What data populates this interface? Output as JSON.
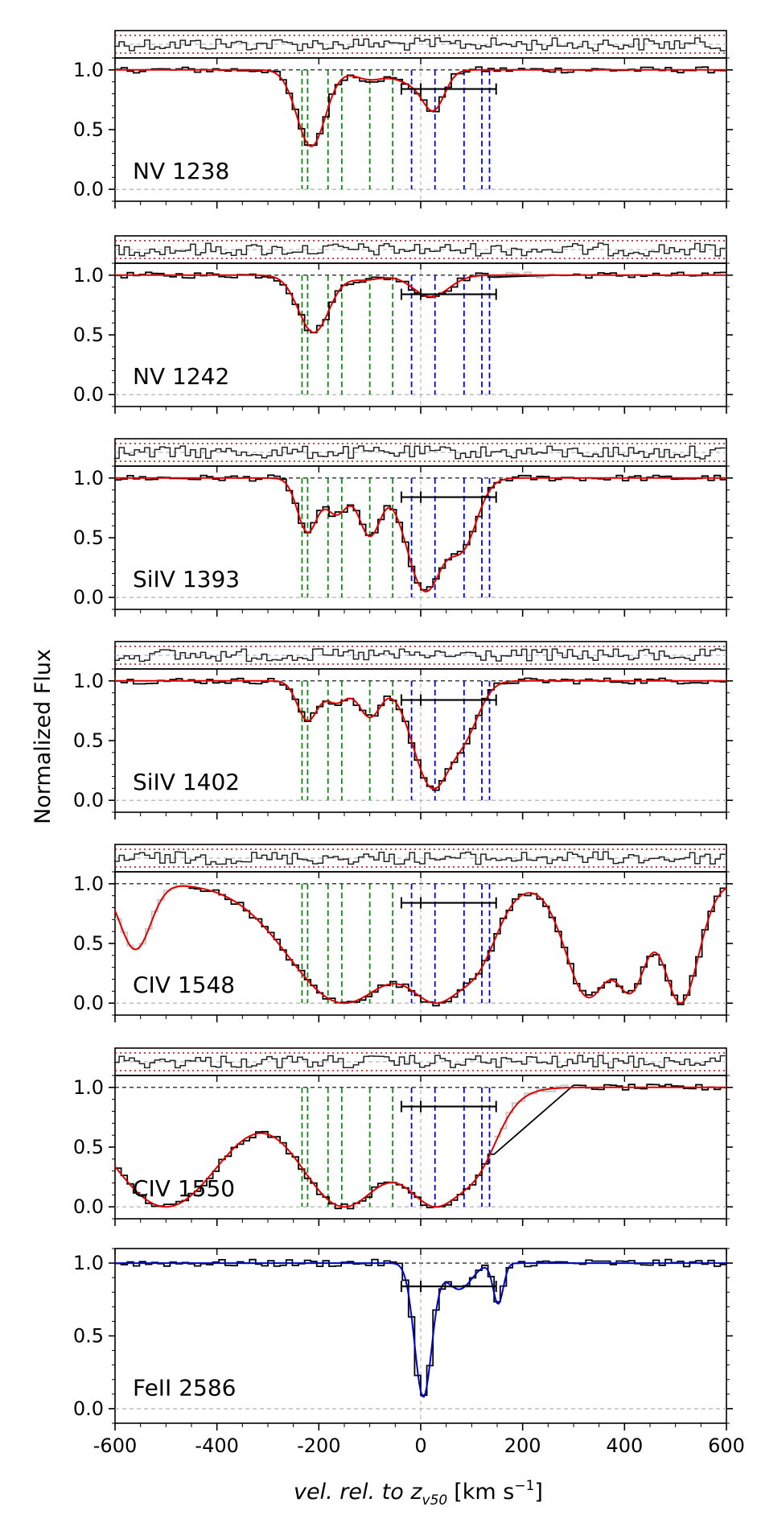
{
  "chart_data": {
    "type": "line",
    "title": "",
    "xlabel_italic": "vel. rel. to z",
    "xlabel_sub": "v50",
    "xlabel_units": "[km s",
    "xlabel_exp": "−1",
    "xlabel_close": "]",
    "ylabel": "Normalized Flux",
    "xlim": [
      -600,
      600
    ],
    "ylim": [
      -0.1,
      1.1
    ],
    "xticks": [
      -600,
      -400,
      -200,
      0,
      200,
      400,
      600
    ],
    "xtick_labels": [
      "-600",
      "-400",
      "-200",
      "0",
      "200",
      "400",
      "600"
    ],
    "yticks": [
      0.0,
      0.5,
      1.0
    ],
    "ytick_labels": [
      "0.0",
      "0.5",
      "1.0"
    ],
    "component_lines_green": [
      -233,
      -222,
      -182,
      -155,
      -100,
      -55
    ],
    "component_lines_blue": [
      -18,
      28,
      85,
      120,
      135
    ],
    "interval_bar": {
      "start": -38,
      "end": 148,
      "center": 0
    },
    "colors": {
      "data": "#000000",
      "model_red": "#e00000",
      "model_blue": "#0000cc",
      "green": "#118811",
      "blue": "#0000ee",
      "residual": "#cc0000",
      "masked": "#c8c8c8"
    },
    "panels": [
      {
        "label": "NV 1238",
        "model_color": "red",
        "has_residual": true,
        "bar_y": 0.84,
        "components": [
          {
            "v": -215,
            "depth": 0.64,
            "sigma": 28
          },
          {
            "v": -100,
            "depth": 0.08,
            "sigma": 30
          },
          {
            "v": -20,
            "depth": 0.1,
            "sigma": 30
          },
          {
            "v": 25,
            "depth": 0.32,
            "sigma": 22
          }
        ],
        "masked": []
      },
      {
        "label": "NV 1242",
        "model_color": "red",
        "has_residual": true,
        "bar_y": 0.84,
        "components": [
          {
            "v": -210,
            "depth": 0.48,
            "sigma": 30
          },
          {
            "v": -110,
            "depth": 0.04,
            "sigma": 30
          },
          {
            "v": 20,
            "depth": 0.18,
            "sigma": 35
          }
        ],
        "masked": [
          [
            150,
            260
          ]
        ]
      },
      {
        "label": "SiIV 1393",
        "model_color": "red",
        "has_residual": true,
        "bar_y": 0.84,
        "components": [
          {
            "v": -222,
            "depth": 0.45,
            "sigma": 20
          },
          {
            "v": -165,
            "depth": 0.3,
            "sigma": 22
          },
          {
            "v": -100,
            "depth": 0.48,
            "sigma": 22
          },
          {
            "v": 10,
            "depth": 0.95,
            "sigma": 38
          },
          {
            "v": 80,
            "depth": 0.55,
            "sigma": 30
          }
        ],
        "masked": []
      },
      {
        "label": "SiIV 1402",
        "model_color": "red",
        "has_residual": true,
        "bar_y": 0.84,
        "components": [
          {
            "v": -222,
            "depth": 0.33,
            "sigma": 20
          },
          {
            "v": -165,
            "depth": 0.18,
            "sigma": 22
          },
          {
            "v": -100,
            "depth": 0.3,
            "sigma": 22
          },
          {
            "v": 25,
            "depth": 0.9,
            "sigma": 40
          },
          {
            "v": 85,
            "depth": 0.35,
            "sigma": 30
          }
        ],
        "masked": []
      },
      {
        "label": "CIV 1548",
        "model_color": "red",
        "has_residual": true,
        "bar_y": 0.84,
        "components": [
          {
            "v": -150,
            "depth": 1.0,
            "sigma": 110
          },
          {
            "v": 30,
            "depth": 1.0,
            "sigma": 70
          },
          {
            "v": 100,
            "depth": 0.5,
            "sigma": 40
          },
          {
            "v": 330,
            "depth": 0.95,
            "sigma": 45
          },
          {
            "v": 410,
            "depth": 0.9,
            "sigma": 35
          },
          {
            "v": 510,
            "depth": 1.0,
            "sigma": 35
          },
          {
            "v": -560,
            "depth": 0.55,
            "sigma": 30
          }
        ],
        "masked": [
          [
            -600,
            -460
          ]
        ]
      },
      {
        "label": "CIV 1550",
        "model_color": "red",
        "has_residual": true,
        "bar_y": 0.84,
        "components": [
          {
            "v": -500,
            "depth": 1.0,
            "sigma": 110
          },
          {
            "v": -150,
            "depth": 1.0,
            "sigma": 90
          },
          {
            "v": 30,
            "depth": 1.0,
            "sigma": 75
          },
          {
            "v": 100,
            "depth": 0.45,
            "sigma": 40
          }
        ],
        "masked": [
          [
            150,
            300
          ]
        ]
      },
      {
        "label": "FeII 2586",
        "model_color": "blue",
        "has_residual": false,
        "bar_y": 0.84,
        "components": [
          {
            "v": 5,
            "depth": 0.92,
            "sigma": 17
          },
          {
            "v": 75,
            "depth": 0.18,
            "sigma": 25
          },
          {
            "v": 152,
            "depth": 0.28,
            "sigma": 10
          }
        ],
        "masked": []
      }
    ]
  }
}
